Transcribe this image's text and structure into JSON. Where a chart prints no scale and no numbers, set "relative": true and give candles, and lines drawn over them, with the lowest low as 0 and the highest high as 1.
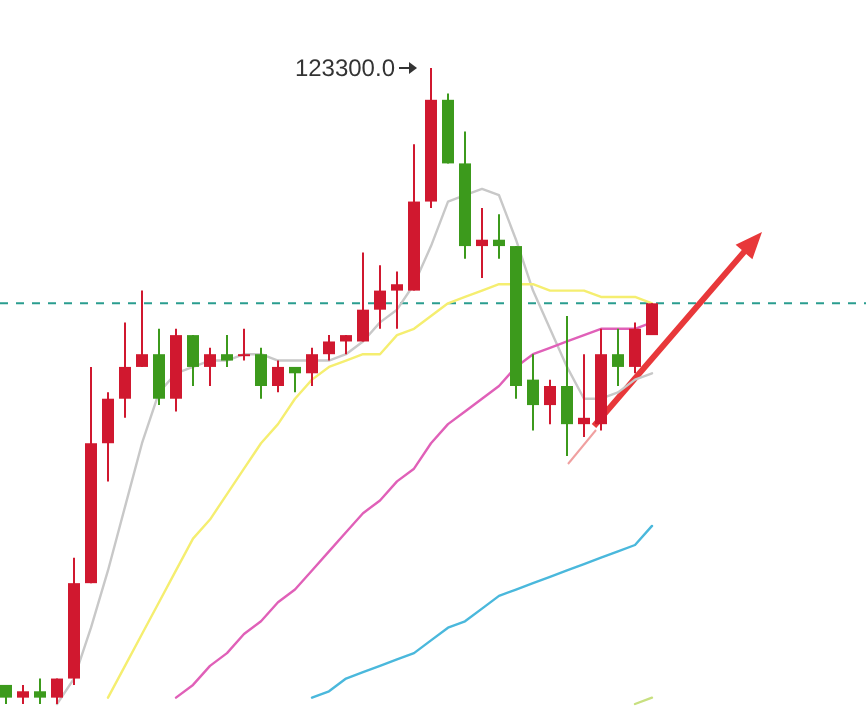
{
  "chart_data": {
    "type": "candlestick",
    "relative": true,
    "categories": [
      null,
      null,
      null,
      null,
      null,
      null,
      null,
      null,
      null,
      null,
      null,
      null,
      null,
      null,
      null,
      null,
      null,
      null,
      null,
      null,
      null,
      null,
      null,
      null,
      null,
      null,
      null,
      null,
      null,
      null,
      null,
      null,
      null,
      null,
      null,
      null,
      null,
      null,
      null
    ],
    "ohlc": [
      [
        0.03,
        0.03,
        0.0,
        0.01
      ],
      [
        0.01,
        0.03,
        0.0,
        0.02
      ],
      [
        0.02,
        0.04,
        0.0,
        0.01
      ],
      [
        0.01,
        0.04,
        0.0,
        0.04
      ],
      [
        0.04,
        0.23,
        0.03,
        0.19
      ],
      [
        0.19,
        0.53,
        0.19,
        0.41
      ],
      [
        0.41,
        0.49,
        0.35,
        0.48
      ],
      [
        0.48,
        0.6,
        0.45,
        0.53
      ],
      [
        0.53,
        0.65,
        0.53,
        0.55
      ],
      [
        0.55,
        0.59,
        0.47,
        0.48
      ],
      [
        0.48,
        0.59,
        0.46,
        0.58
      ],
      [
        0.58,
        0.58,
        0.5,
        0.53
      ],
      [
        0.53,
        0.56,
        0.5,
        0.55
      ],
      [
        0.55,
        0.58,
        0.53,
        0.54
      ],
      [
        0.55,
        0.59,
        0.54,
        0.55
      ],
      [
        0.55,
        0.56,
        0.48,
        0.5
      ],
      [
        0.5,
        0.54,
        0.49,
        0.53
      ],
      [
        0.53,
        0.53,
        0.49,
        0.52
      ],
      [
        0.52,
        0.56,
        0.5,
        0.55
      ],
      [
        0.55,
        0.58,
        0.54,
        0.57
      ],
      [
        0.57,
        0.58,
        0.55,
        0.58
      ],
      [
        0.57,
        0.71,
        0.57,
        0.62
      ],
      [
        0.62,
        0.69,
        0.59,
        0.65
      ],
      [
        0.65,
        0.68,
        0.59,
        0.66
      ],
      [
        0.65,
        0.88,
        0.65,
        0.79
      ],
      [
        0.79,
        1,
        0.78,
        0.95
      ],
      [
        0.95,
        0.96,
        0.85,
        0.85
      ],
      [
        0.85,
        0.9,
        0.7,
        0.72
      ],
      [
        0.72,
        0.78,
        0.67,
        0.73
      ],
      [
        0.73,
        0.77,
        0.7,
        0.72
      ],
      [
        0.72,
        0.72,
        0.48,
        0.5
      ],
      [
        0.51,
        0.55,
        0.43,
        0.47
      ],
      [
        0.47,
        0.51,
        0.44,
        0.5
      ],
      [
        0.5,
        0.61,
        0.39,
        0.44
      ],
      [
        0.44,
        0.55,
        0.42,
        0.45
      ],
      [
        0.44,
        0.59,
        0.43,
        0.55
      ],
      [
        0.55,
        0.59,
        0.5,
        0.53
      ],
      [
        0.53,
        0.6,
        0.52,
        0.59
      ],
      [
        0.58,
        0.63,
        0.58,
        0.63
      ]
    ],
    "colors": [
      "#3c9a1c",
      "#d0182f",
      "#3c9a1c",
      "#d0182f",
      "#d0182f",
      "#d0182f",
      "#d0182f",
      "#d0182f",
      "#d0182f",
      "#3c9a1c",
      "#d0182f",
      "#3c9a1c",
      "#d0182f",
      "#3c9a1c",
      "#d0182f",
      "#3c9a1c",
      "#d0182f",
      "#3c9a1c",
      "#d0182f",
      "#d0182f",
      "#d0182f",
      "#d0182f",
      "#d0182f",
      "#d0182f",
      "#d0182f",
      "#d0182f",
      "#3c9a1c",
      "#3c9a1c",
      "#d0182f",
      "#3c9a1c",
      "#3c9a1c",
      "#3c9a1c",
      "#d0182f",
      "#3c9a1c",
      "#d0182f",
      "#d0182f",
      "#3c9a1c",
      "#d0182f",
      "#d0182f"
    ],
    "series": [
      {
        "type": "line",
        "color": "#c8c8c8",
        "values": [
          null,
          null,
          null,
          0.0,
          0.04,
          0.12,
          0.21,
          0.31,
          0.41,
          0.49,
          0.52,
          0.53,
          0.54,
          0.54,
          0.55,
          0.55,
          0.54,
          0.54,
          0.54,
          0.54,
          0.55,
          0.57,
          0.6,
          0.62,
          0.66,
          0.72,
          0.79,
          0.8,
          0.81,
          0.8,
          0.73,
          0.65,
          0.59,
          0.53,
          0.48,
          0.48,
          0.49,
          0.51,
          0.52
        ]
      },
      {
        "type": "line",
        "color": "#f5ee70",
        "values": [
          null,
          null,
          null,
          null,
          null,
          null,
          0.01,
          0.06,
          0.11,
          0.16,
          0.21,
          0.26,
          0.29,
          0.33,
          0.37,
          0.41,
          0.44,
          0.48,
          0.51,
          0.53,
          0.54,
          0.55,
          0.55,
          0.58,
          0.59,
          0.61,
          0.63,
          0.64,
          0.65,
          0.66,
          0.66,
          0.66,
          0.65,
          0.65,
          0.65,
          0.64,
          0.64,
          0.64,
          0.63
        ]
      },
      {
        "type": "line",
        "color": "#e060b8",
        "values": [
          null,
          null,
          null,
          null,
          null,
          null,
          null,
          null,
          null,
          null,
          0.01,
          0.03,
          0.06,
          0.08,
          0.11,
          0.13,
          0.16,
          0.18,
          0.21,
          0.24,
          0.27,
          0.3,
          0.32,
          0.35,
          0.37,
          0.41,
          0.44,
          0.46,
          0.48,
          0.5,
          0.53,
          0.55,
          0.56,
          0.57,
          0.58,
          0.59,
          0.59,
          0.59,
          0.6
        ]
      },
      {
        "type": "line",
        "color": "#4ab8dc",
        "values": [
          null,
          null,
          null,
          null,
          null,
          null,
          null,
          null,
          null,
          null,
          null,
          null,
          null,
          null,
          null,
          null,
          null,
          null,
          0.01,
          0.02,
          0.04,
          0.05,
          0.06,
          0.07,
          0.08,
          0.1,
          0.12,
          0.13,
          0.15,
          0.17,
          0.18,
          0.19,
          0.2,
          0.21,
          0.22,
          0.23,
          0.24,
          0.25,
          0.28
        ]
      },
      {
        "type": "line",
        "color": "#c8e080",
        "values": [
          null,
          null,
          null,
          null,
          null,
          null,
          null,
          null,
          null,
          null,
          null,
          null,
          null,
          null,
          null,
          null,
          null,
          null,
          null,
          null,
          null,
          null,
          null,
          null,
          null,
          null,
          null,
          null,
          null,
          null,
          null,
          null,
          null,
          null,
          null,
          null,
          null,
          0.0,
          0.01
        ]
      }
    ],
    "ref_lines": [
      {
        "axis": "y",
        "value": 0.63,
        "color": "#2a9d8f",
        "line_style": "dashed"
      }
    ],
    "annotations": [
      "123300.0"
    ]
  }
}
